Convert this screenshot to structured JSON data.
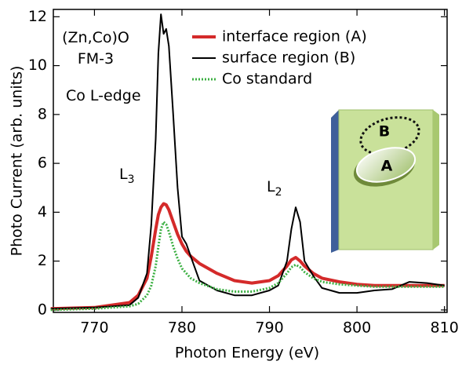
{
  "chart_data": {
    "type": "line",
    "xlabel": "Photon Energy (eV)",
    "ylabel": "Photo Current (arb. units)",
    "xlim": [
      765.3,
      810.3
    ],
    "xticks": [
      770,
      780,
      790,
      800,
      810
    ],
    "ylim": [
      -0.1,
      12.3
    ],
    "yticks": [
      0,
      2,
      4,
      6,
      8,
      10,
      12
    ],
    "legend": "upper center",
    "annotations": [
      {
        "text": "(Zn,Co)O"
      },
      {
        "text": "FM-3"
      },
      {
        "text": "Co L-edge"
      },
      {
        "text": "L",
        "sub": "3"
      },
      {
        "text": "L",
        "sub": "2"
      }
    ],
    "inset_labels": [
      "B",
      "A"
    ],
    "x": [
      765,
      770,
      774,
      775,
      776,
      776.5,
      777,
      777.3,
      777.6,
      777.9,
      778.2,
      778.5,
      779,
      779.5,
      780,
      780.5,
      781,
      782,
      784,
      786,
      788,
      790,
      791,
      792,
      792.5,
      793,
      793.5,
      794,
      795,
      796,
      798,
      800,
      802,
      804,
      806,
      808,
      810
    ],
    "series": [
      {
        "name": "interface region (A)",
        "color": "#d42a2a",
        "width": 4,
        "dash": "",
        "values": [
          0.05,
          0.1,
          0.3,
          0.6,
          1.3,
          2.2,
          3.3,
          3.9,
          4.2,
          4.35,
          4.3,
          4.1,
          3.6,
          3.1,
          2.7,
          2.4,
          2.2,
          1.9,
          1.5,
          1.2,
          1.1,
          1.2,
          1.4,
          1.8,
          2.05,
          2.15,
          2.0,
          1.8,
          1.5,
          1.3,
          1.15,
          1.05,
          1.0,
          1.0,
          1.0,
          1.0,
          1.0
        ]
      },
      {
        "name": "surface region (B)",
        "color": "#000000",
        "width": 2,
        "dash": "",
        "values": [
          0.05,
          0.1,
          0.2,
          0.5,
          1.5,
          3.5,
          7,
          10.5,
          12.1,
          11.3,
          11.5,
          10.8,
          8,
          5,
          3,
          2.7,
          2.2,
          1.2,
          0.8,
          0.6,
          0.6,
          0.8,
          1.0,
          2.0,
          3.3,
          4.2,
          3.6,
          2.0,
          1.4,
          0.9,
          0.7,
          0.7,
          0.8,
          0.85,
          1.15,
          1.1,
          1.0
        ]
      },
      {
        "name": "Co standard",
        "color": "#3cb043",
        "width": 3,
        "dash": "2 2",
        "values": [
          0.0,
          0.05,
          0.15,
          0.25,
          0.6,
          1.0,
          1.8,
          2.6,
          3.3,
          3.6,
          3.5,
          3.2,
          2.6,
          2.1,
          1.7,
          1.5,
          1.3,
          1.1,
          0.85,
          0.75,
          0.75,
          0.9,
          1.1,
          1.5,
          1.75,
          1.85,
          1.75,
          1.55,
          1.3,
          1.15,
          1.05,
          1.0,
          0.95,
          0.95,
          0.95,
          0.95,
          0.95
        ]
      }
    ]
  }
}
